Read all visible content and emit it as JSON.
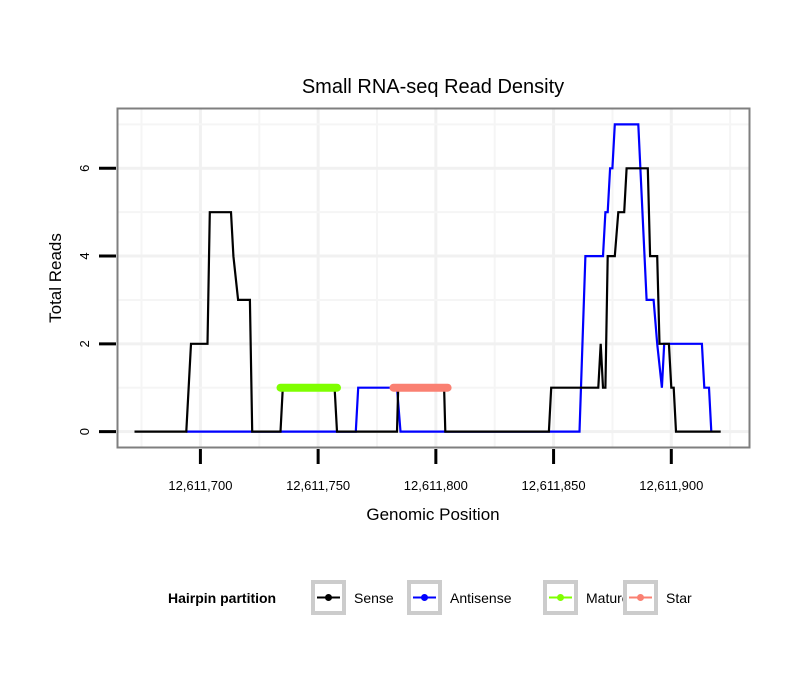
{
  "chart_data": {
    "type": "line",
    "title": "Small RNA-seq Read Density",
    "xlabel": "Genomic Position",
    "ylabel": "Total Reads",
    "xlim": [
      12611665,
      12611933
    ],
    "ylim": [
      -0.35,
      7.35
    ],
    "x_ticks": [
      12611700,
      12611750,
      12611800,
      12611850,
      12611900
    ],
    "x_tick_labels": [
      "12,611,700",
      "12,611,750",
      "12,611,800",
      "12,611,850",
      "12,611,900"
    ],
    "y_ticks": [
      0,
      2,
      4,
      6
    ],
    "y_tick_labels": [
      "0",
      "2",
      "4",
      "6"
    ],
    "x_minor_grid": [
      12611675,
      12611725,
      12611775,
      12611825,
      12611875,
      12611925
    ],
    "y_minor_grid": [
      1,
      3,
      5,
      7
    ],
    "grid": true,
    "legend": {
      "title": "Hairpin partition",
      "placement": "bottom",
      "entries": [
        {
          "label": "Sense",
          "color": "#000000"
        },
        {
          "label": "Antisense",
          "color": "#0000ff"
        },
        {
          "label": "Mature",
          "color": "#7fff00"
        },
        {
          "label": "Star",
          "color": "#fa8072"
        }
      ]
    },
    "series": [
      {
        "name": "Sense",
        "color": "#000000",
        "x": [
          12611672,
          12611694,
          12611696,
          12611703,
          12611704,
          12611713,
          12611714,
          12611716,
          12611721,
          12611722,
          12611734,
          12611735,
          12611757,
          12611758,
          12611783.5,
          12611784,
          12611803.5,
          12611804,
          12611848,
          12611849,
          12611869,
          12611870,
          12611871,
          12611872,
          12611873,
          12611876,
          12611877.5,
          12611880,
          12611881,
          12611890,
          12611891,
          12611894,
          12611895,
          12611899,
          12611900,
          12611901,
          12611902,
          12611921
        ],
        "y": [
          0,
          0,
          2,
          2,
          5,
          5,
          4,
          3,
          3,
          0,
          0,
          1,
          1,
          0,
          0,
          1,
          1,
          0,
          0,
          1,
          1,
          2,
          1,
          1,
          4,
          4,
          5,
          5,
          6,
          6,
          4,
          4,
          2,
          2,
          1,
          1,
          0,
          0
        ]
      },
      {
        "name": "Antisense",
        "color": "#0000ff",
        "x": [
          12611694,
          12611766,
          12611767,
          12611783.5,
          12611785,
          12611861,
          12611863.5,
          12611871,
          12611872,
          12611873,
          12611874,
          12611875,
          12611876,
          12611886,
          12611889.5,
          12611892.5,
          12611894,
          12611896,
          12611897,
          12611913,
          12611914,
          12611916,
          12611917
        ],
        "y": [
          0,
          0,
          1,
          1,
          0,
          0,
          4,
          4,
          5,
          5,
          6,
          6,
          7,
          7,
          3,
          3,
          2,
          1,
          2,
          2,
          1,
          1,
          0
        ]
      },
      {
        "name": "Mature",
        "color": "#7fff00",
        "x": [
          12611734,
          12611758
        ],
        "y": [
          1,
          1
        ]
      },
      {
        "name": "Star",
        "color": "#fa8072",
        "x": [
          12611782,
          12611805
        ],
        "y": [
          1,
          1
        ]
      }
    ]
  }
}
